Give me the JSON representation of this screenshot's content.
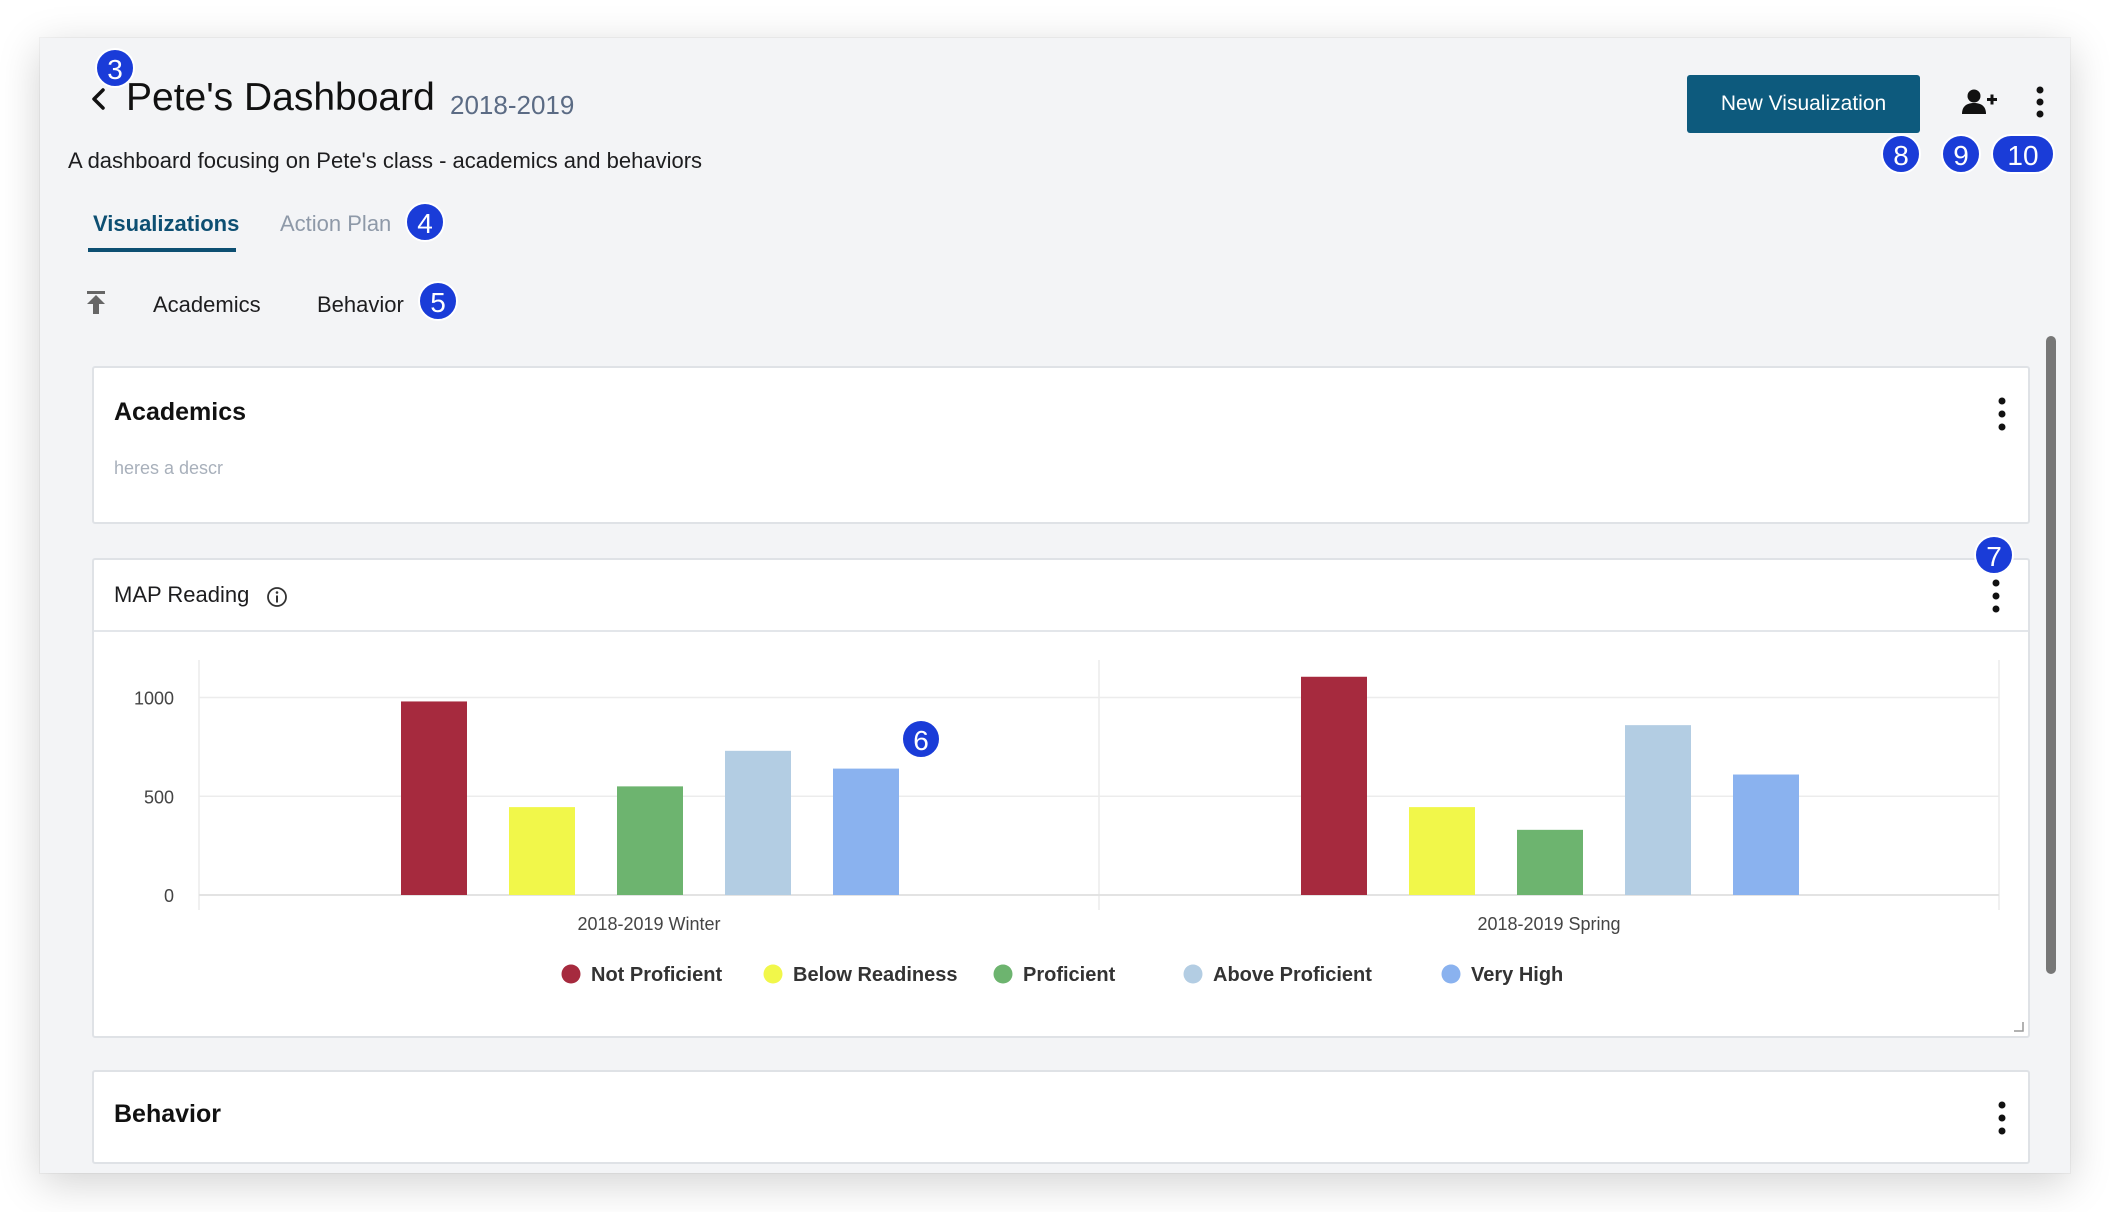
{
  "header": {
    "title": "Pete's Dashboard",
    "year": "2018-2019",
    "description": "A dashboard focusing on Pete's class - academics and behaviors",
    "new_visualization_label": "New Visualization"
  },
  "tabs": [
    {
      "label": "Visualizations",
      "active": true
    },
    {
      "label": "Action Plan",
      "active": false
    }
  ],
  "section_nav": [
    "Academics",
    "Behavior"
  ],
  "sections": {
    "academics": {
      "title": "Academics",
      "description": "heres a descr"
    },
    "behavior": {
      "title": "Behavior"
    }
  },
  "visualization": {
    "title": "MAP Reading"
  },
  "chart_data": {
    "type": "bar",
    "categories": [
      "2018-2019 Winter",
      "2018-2019 Spring"
    ],
    "series": [
      {
        "name": "Not Proficient",
        "color": "#a62a3e",
        "values": [
          980,
          1105
        ]
      },
      {
        "name": "Below Readiness",
        "color": "#f1f74a",
        "values": [
          445,
          445
        ]
      },
      {
        "name": "Proficient",
        "color": "#6db46f",
        "values": [
          550,
          330
        ]
      },
      {
        "name": "Above Proficient",
        "color": "#b3cde3",
        "values": [
          730,
          860
        ]
      },
      {
        "name": "Very High",
        "color": "#8ab2ef",
        "values": [
          640,
          610
        ]
      }
    ],
    "y_ticks": [
      "0",
      "500",
      "1000"
    ],
    "ylim": [
      0,
      1150
    ],
    "grid": true,
    "legend_position": "bottom"
  },
  "badges": [
    "3",
    "4",
    "5",
    "6",
    "7",
    "8",
    "9",
    "10"
  ],
  "icons": {
    "back": "chevron-left-icon",
    "add_user": "user-plus-icon",
    "more": "more-vertical-icon",
    "collapse": "collapse-all-icon",
    "info": "info-icon"
  }
}
